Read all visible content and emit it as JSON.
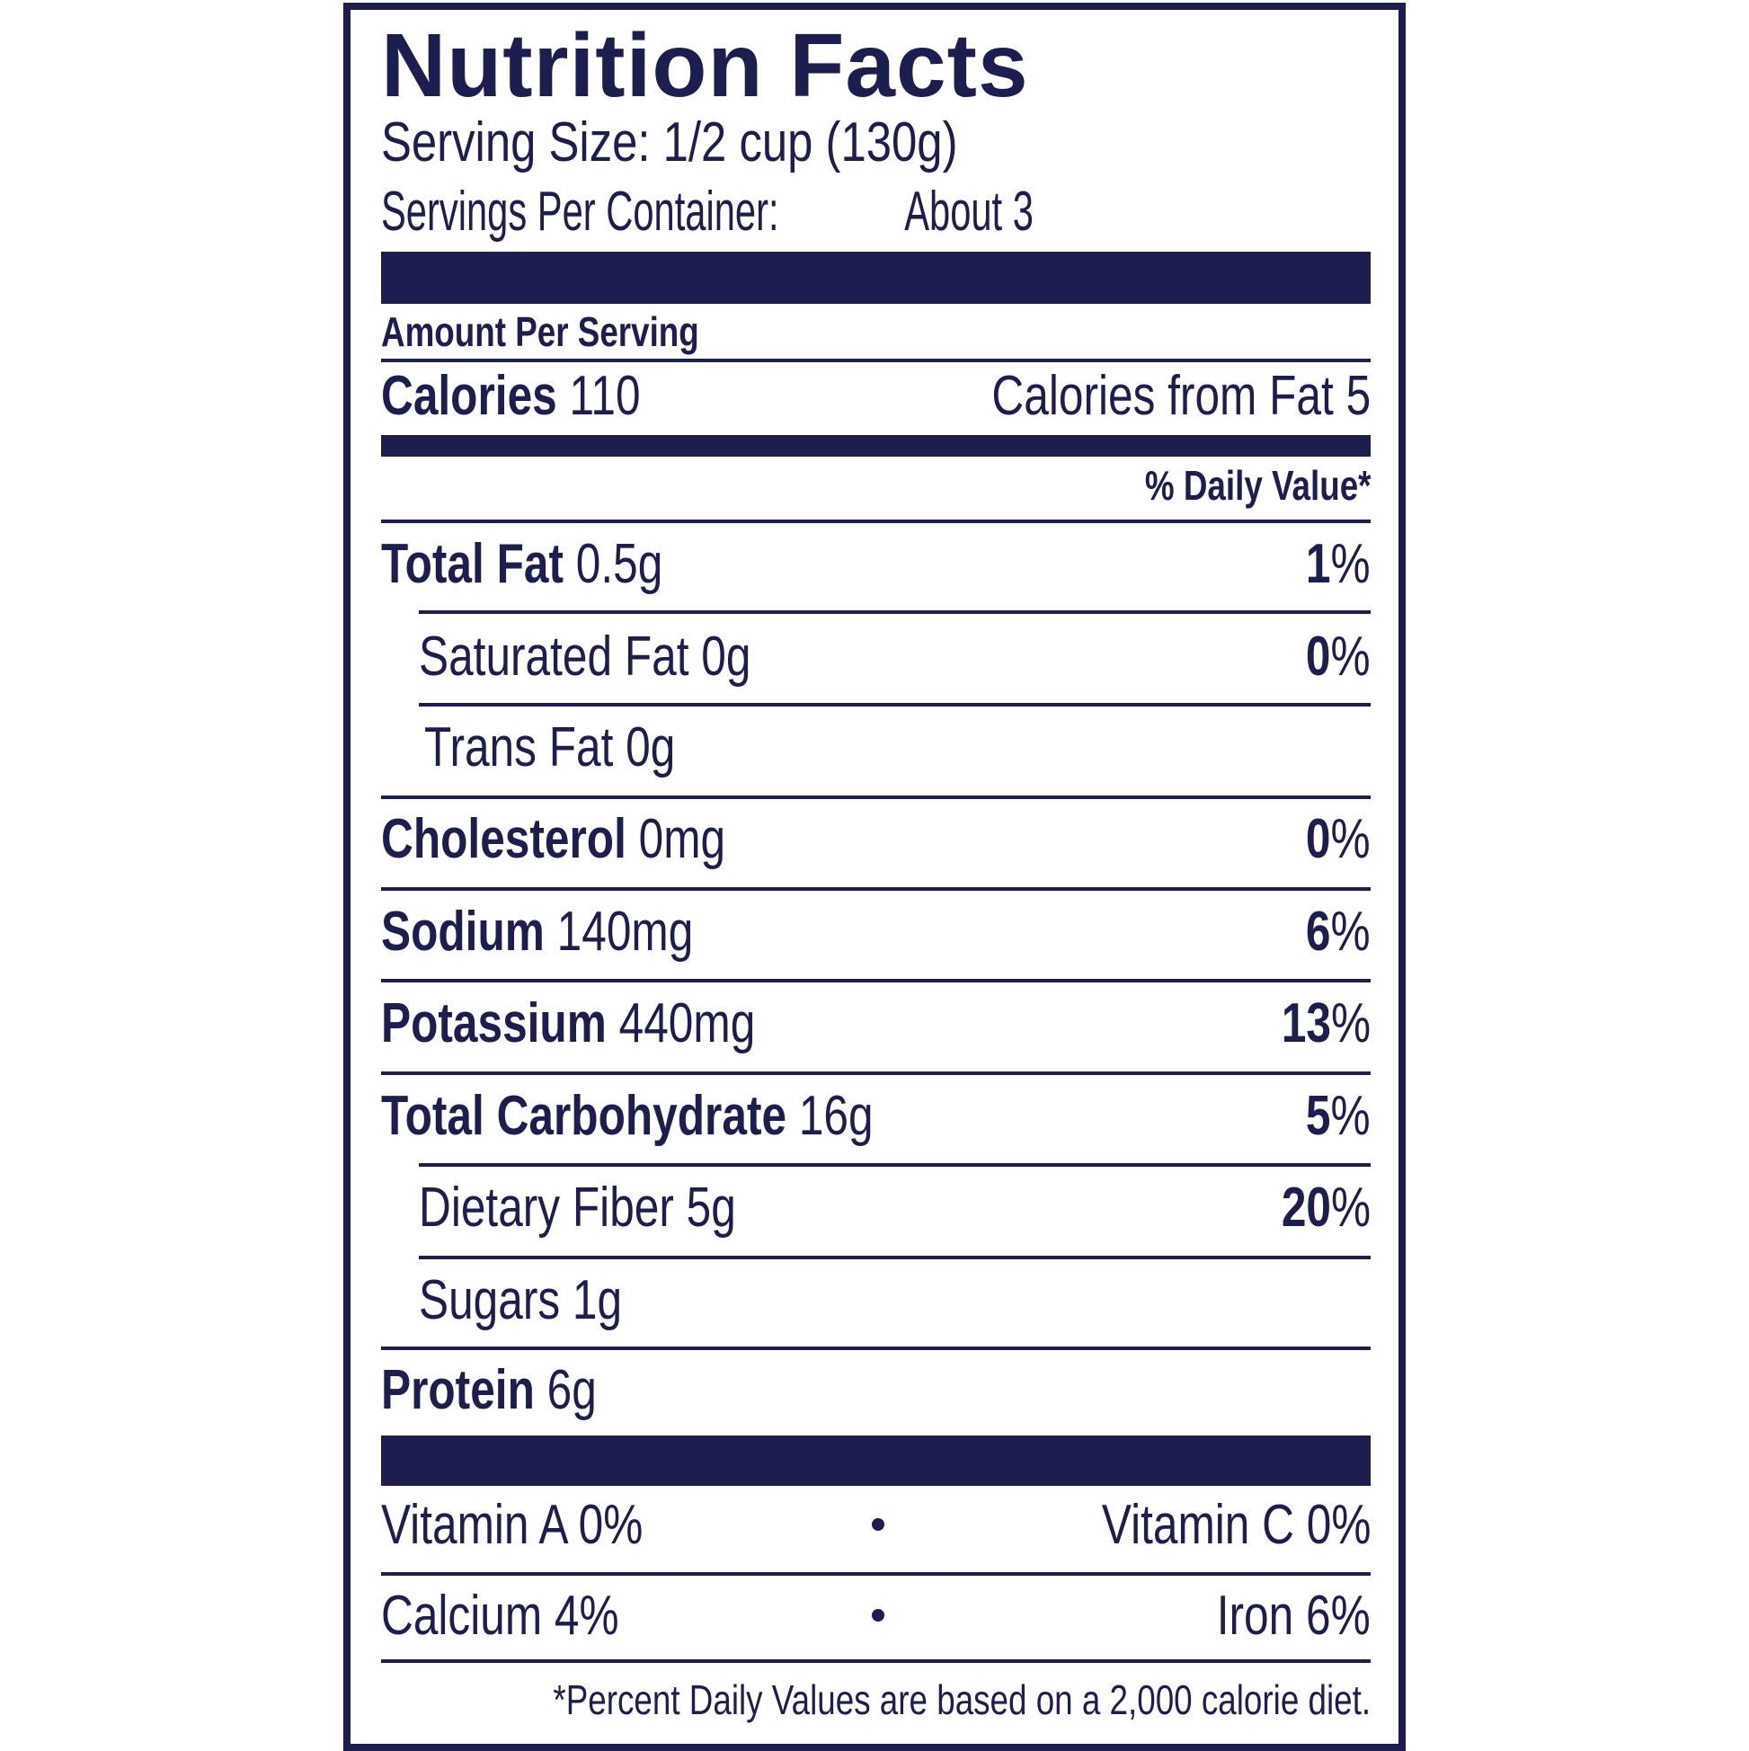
{
  "label": {
    "title": "Nutrition Facts",
    "serving_size": "Serving Size: 1/2 cup (130g)",
    "servings_per_container_label": "Servings Per Container:",
    "servings_per_container_value": "About 3",
    "amount_per_serving": "Amount Per Serving",
    "calories_label": "Calories",
    "calories_value": "110",
    "calories_from_fat": "Calories from Fat 5",
    "daily_value_header": "% Daily Value*",
    "nutrients": [
      {
        "name": "Total Fat",
        "amount": "0.5g",
        "dv_num": "1",
        "dv_pct": "%"
      },
      {
        "name": "Saturated Fat 0g",
        "dv_num": "0",
        "dv_pct": "%"
      },
      {
        "name": "Trans Fat 0g"
      },
      {
        "name": "Cholesterol",
        "amount": "0mg",
        "dv_num": "0",
        "dv_pct": "%"
      },
      {
        "name": "Sodium",
        "amount": "140mg",
        "dv_num": "6",
        "dv_pct": "%"
      },
      {
        "name": "Potassium",
        "amount": "440mg",
        "dv_num": "13",
        "dv_pct": "%"
      },
      {
        "name": "Total Carbohydrate",
        "amount": "16g",
        "dv_num": "5",
        "dv_pct": "%"
      },
      {
        "name": "Dietary Fiber 5g",
        "dv_num": "20",
        "dv_pct": "%"
      },
      {
        "name": "Sugars 1g"
      },
      {
        "name": "Protein",
        "amount": "6g"
      }
    ],
    "vitamins": [
      {
        "left": "Vitamin A 0%",
        "right": "Vitamin C 0%"
      },
      {
        "left": "Calcium 4%",
        "right": "Iron 6%"
      }
    ],
    "footnote": "*Percent Daily Values are based on a 2,000 calorie diet.",
    "colors": {
      "ink": "#1b1e4f",
      "background": "#ffffff"
    }
  }
}
